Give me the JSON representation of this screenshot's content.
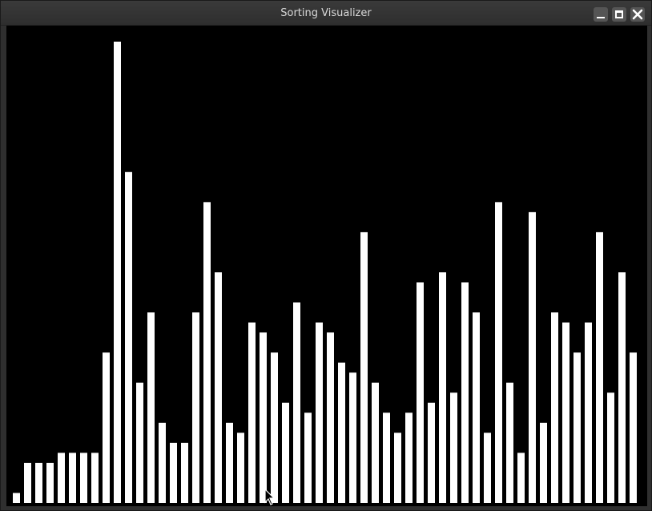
{
  "window": {
    "title": "Sorting Visualizer"
  },
  "controls": {
    "minimize_icon": "minimize-icon",
    "maximize_icon": "maximize-icon",
    "close_icon": "close-icon"
  },
  "colors": {
    "canvas_bg": "#000000",
    "bar": "#ffffff"
  },
  "chart_data": {
    "type": "bar",
    "ylim": [
      0,
      46
    ],
    "values": [
      1,
      4,
      4,
      4,
      5,
      5,
      5,
      5,
      15,
      46,
      33,
      12,
      19,
      8,
      6,
      6,
      19,
      30,
      23,
      8,
      7,
      18,
      17,
      15,
      10,
      20,
      9,
      18,
      17,
      14,
      13,
      27,
      12,
      9,
      7,
      9,
      22,
      10,
      23,
      11,
      22,
      19,
      7,
      30,
      12,
      5,
      29,
      8,
      19,
      18,
      15,
      18,
      27,
      11,
      23,
      15
    ]
  }
}
